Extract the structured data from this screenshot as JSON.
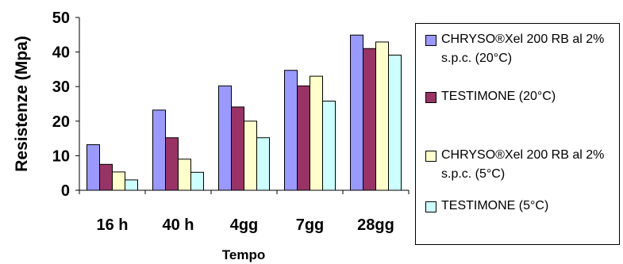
{
  "chart_data": {
    "type": "bar",
    "title": "",
    "xlabel": "Tempo",
    "ylabel": "Resistenze (Mpa)",
    "ylim": [
      0,
      50
    ],
    "yticks": [
      "0",
      "10",
      "20",
      "30",
      "40",
      "50"
    ],
    "categories": [
      "16 h",
      "40 h",
      "4gg",
      "7gg",
      "28gg"
    ],
    "series": [
      {
        "name": "CHRYSO®Xel 200 RB al 2% s.p.c. (20°C)",
        "color": "#9999ff",
        "values": [
          13.2,
          23.2,
          30.2,
          34.7,
          44.9
        ]
      },
      {
        "name": "TESTIMONE (20°C)",
        "color": "#993366",
        "values": [
          7.5,
          15.2,
          24.1,
          30.2,
          41.0
        ]
      },
      {
        "name": "CHRYSO®Xel 200 RB al 2% s.p.c. (5°C)",
        "color": "#ffffcc",
        "values": [
          5.3,
          9.0,
          20.0,
          33.0,
          42.9
        ]
      },
      {
        "name": "TESTIMONE (5°C)",
        "color": "#ccffff",
        "values": [
          3.0,
          5.2,
          15.2,
          25.8,
          39.1
        ]
      }
    ],
    "grid": false,
    "legend_position": "right"
  }
}
